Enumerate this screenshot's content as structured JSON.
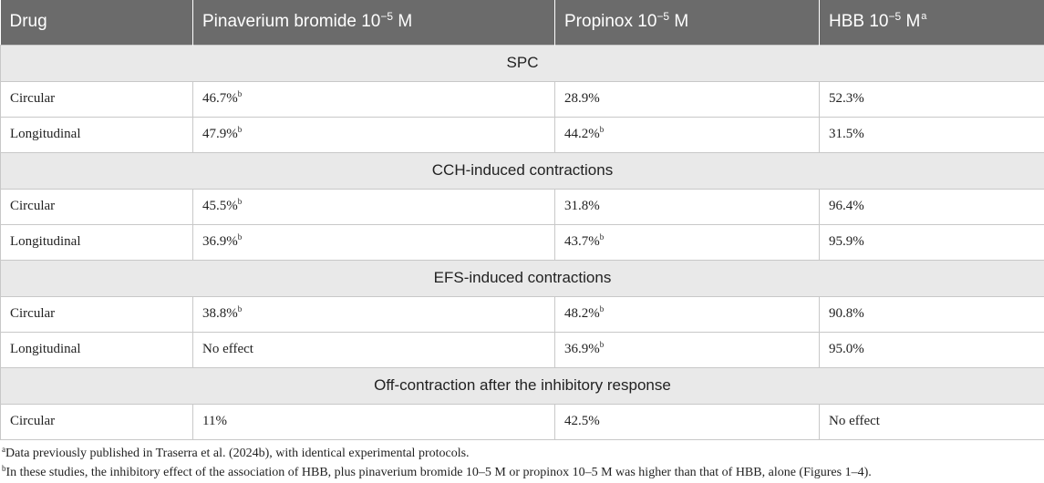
{
  "columns": [
    {
      "label": "Drug",
      "sup": "",
      "note": ""
    },
    {
      "label": "Pinaverium bromide 10",
      "sup": "−5",
      "label_end": " M",
      "note": ""
    },
    {
      "label": "Propinox 10",
      "sup": "−5",
      "label_end": " M",
      "note": ""
    },
    {
      "label": "HBB 10",
      "sup": "−5",
      "label_end": " M",
      "note": "a"
    }
  ],
  "sections": [
    {
      "title": "SPC",
      "rows": [
        {
          "drug": "Circular",
          "pinaverium": "46.7%",
          "pinaverium_note": "b",
          "propinox": "28.9%",
          "propinox_note": "",
          "hbb": "52.3%"
        },
        {
          "drug": "Longitudinal",
          "pinaverium": "47.9%",
          "pinaverium_note": "b",
          "propinox": "44.2%",
          "propinox_note": "b",
          "hbb": "31.5%"
        }
      ]
    },
    {
      "title": "CCH-induced contractions",
      "rows": [
        {
          "drug": "Circular",
          "pinaverium": "45.5%",
          "pinaverium_note": "b",
          "propinox": "31.8%",
          "propinox_note": "",
          "hbb": "96.4%"
        },
        {
          "drug": "Longitudinal",
          "pinaverium": "36.9%",
          "pinaverium_note": "b",
          "propinox": "43.7%",
          "propinox_note": "b",
          "hbb": "95.9%"
        }
      ]
    },
    {
      "title": "EFS-induced contractions",
      "rows": [
        {
          "drug": "Circular",
          "pinaverium": "38.8%",
          "pinaverium_note": "b",
          "propinox": "48.2%",
          "propinox_note": "b",
          "hbb": "90.8%"
        },
        {
          "drug": "Longitudinal",
          "pinaverium": "No effect",
          "pinaverium_note": "",
          "propinox": "36.9%",
          "propinox_note": "b",
          "hbb": "95.0%"
        }
      ]
    },
    {
      "title": "Off-contraction after the inhibitory response",
      "rows": [
        {
          "drug": "Circular",
          "pinaverium": "11%",
          "pinaverium_note": "",
          "propinox": "42.5%",
          "propinox_note": "",
          "hbb": "No effect"
        }
      ]
    }
  ],
  "footnotes": [
    {
      "mark": "a",
      "text": "Data previously published in Traserra et al. (2024b), with identical experimental protocols."
    },
    {
      "mark": "b",
      "text": "In these studies, the inhibitory effect of the association of HBB, plus pinaverium bromide 10–5 M or propinox 10–5 M was higher than that of HBB, alone (Figures 1–4)."
    }
  ],
  "colors": {
    "header_bg": "#6b6b6b",
    "section_bg": "#e9e9e9",
    "border": "#c8c8c8",
    "text": "#222222"
  }
}
